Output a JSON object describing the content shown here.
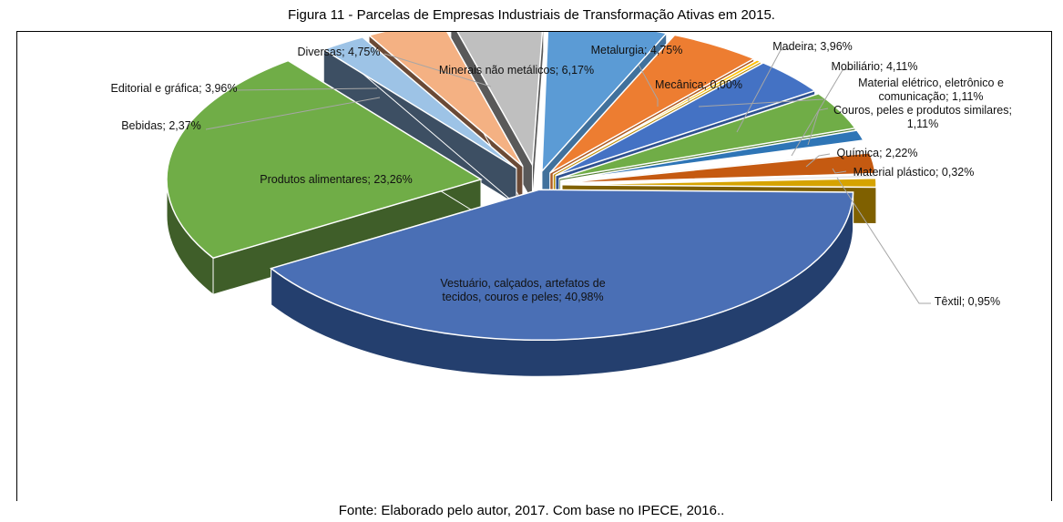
{
  "figure": {
    "title": "Figura 11 - Parcelas de Empresas Industriais de Transformação Ativas em 2015.",
    "source": "Fonte: Elaborado pelo autor, 2017. Com base no IPECE, 2016.."
  },
  "chart_data": {
    "type": "pie",
    "style": "3d-exploded",
    "title": "Figura 11 - Parcelas de Empresas Industriais de Transformação Ativas em 2015.",
    "unit": "%",
    "legend": "none (data labels with leader lines)",
    "slices": [
      {
        "name": "Minerais não metálicos",
        "value": 6.17,
        "label": "Minerais não metálicos; 6,17%",
        "color": "#5B9BD5",
        "side": "#41719C"
      },
      {
        "name": "Metalurgia",
        "value": 4.75,
        "label": "Metalurgia; 4,75%",
        "color": "#ED7D31",
        "side": "#AE5A21"
      },
      {
        "name": "Mecânica",
        "value": 0.0,
        "label": "Mecânica; 0,00%",
        "color": "#FFC000",
        "side": "#BC8C00"
      },
      {
        "name": "Madeira",
        "value": 3.96,
        "label": "Madeira; 3,96%",
        "color": "#4472C4",
        "side": "#2F528F"
      },
      {
        "name": "Mobiliário",
        "value": 4.11,
        "label": "Mobiliário; 4,11%",
        "color": "#70AD47",
        "side": "#507E32"
      },
      {
        "name": "Material elétrico, eletrônico e comunicação",
        "value": 1.11,
        "label": "Material elétrico, eletrônico e comunicação; 1,11%",
        "color": "#2E75B6",
        "side": "#1F4E79"
      },
      {
        "name": "Couros, peles e produtos similares",
        "value": 1.11,
        "label": "Couros, peles e produtos similares; 1,11%",
        "color": "#FFFFFF",
        "side": "#DDDDDD"
      },
      {
        "name": "Química",
        "value": 2.22,
        "label": "Química; 2,22%",
        "color": "#C55A11",
        "side": "#843C0C"
      },
      {
        "name": "Material plástico",
        "value": 0.32,
        "label": "Material plástico; 0,32%",
        "color": "#E7E6E6",
        "side": "#AFABAB"
      },
      {
        "name": "Têxtil",
        "value": 0.95,
        "label": "Têxtil; 0,95%",
        "color": "#D6A300",
        "side": "#7F6000"
      },
      {
        "name": "Vestuário, calçados, artefatos de tecidos, couros e peles",
        "value": 40.98,
        "label": "Vestuário, calçados, artefatos de tecidos, couros e peles; 40,98%",
        "color": "#4A6FB5",
        "side": "#243F6E"
      },
      {
        "name": "Produtos alimentares",
        "value": 23.26,
        "label": "Produtos alimentares; 23,26%",
        "color": "#70AD47",
        "side": "#3F5E29"
      },
      {
        "name": "Bebidas",
        "value": 2.37,
        "label": "Bebidas; 2,37%",
        "color": "#9DC3E6",
        "side": "#3D4F63"
      },
      {
        "name": "Editorial e gráfica",
        "value": 3.96,
        "label": "Editorial e gráfica; 3,96%",
        "color": "#F4B183",
        "side": "#6B4A36"
      },
      {
        "name": "Diversas",
        "value": 4.75,
        "label": "Diversas; 4,75%",
        "color": "#BFBFBF",
        "side": "#595959"
      }
    ]
  }
}
